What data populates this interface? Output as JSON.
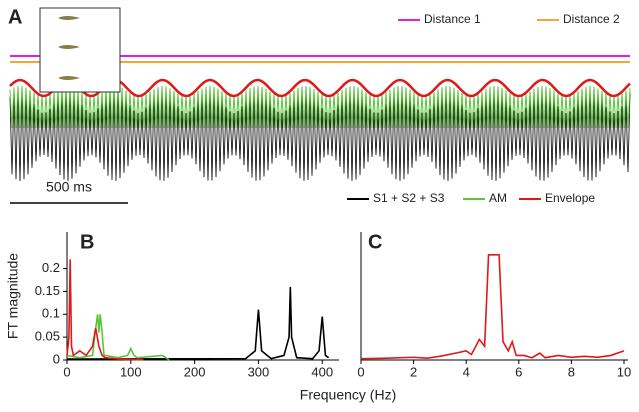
{
  "chart_data": [
    {
      "type": "waveform",
      "panel": "A",
      "scale_label": "500 ms",
      "series": [
        {
          "name": "Distance 1",
          "color": "#e020e0"
        },
        {
          "name": "Distance 2",
          "color": "#f0a830"
        }
      ]
    },
    {
      "type": "line",
      "panel": "B",
      "ylabel": "FT magnitude",
      "xlabel": "Frequency (Hz)",
      "xlim": [
        0,
        420
      ],
      "ylim": [
        0,
        0.28
      ],
      "xticks": [
        0,
        100,
        200,
        300,
        400
      ],
      "yticks": [
        0,
        0.05,
        0.1,
        0.15,
        0.2
      ],
      "series": [
        {
          "name": "S1 + S2 + S3",
          "color": "#000000",
          "x": [
            0,
            280,
            295,
            300,
            305,
            320,
            340,
            348,
            350,
            352,
            360,
            385,
            395,
            400,
            405,
            410
          ],
          "values": [
            0.002,
            0.003,
            0.02,
            0.11,
            0.02,
            0.003,
            0.01,
            0.05,
            0.16,
            0.05,
            0.005,
            0.003,
            0.02,
            0.095,
            0.01,
            0.005
          ]
        },
        {
          "name": "AM",
          "color": "#5cc43c",
          "x": [
            0,
            20,
            40,
            45,
            48,
            50,
            52,
            55,
            58,
            60,
            80,
            95,
            100,
            105,
            110,
            150,
            160
          ],
          "values": [
            0.01,
            0.005,
            0.01,
            0.07,
            0.1,
            0.06,
            0.1,
            0.06,
            0.01,
            0.01,
            0.005,
            0.01,
            0.025,
            0.01,
            0.005,
            0.01,
            0
          ]
        },
        {
          "name": "Envelope",
          "color": "#e01818",
          "x": [
            0,
            3,
            5,
            7,
            10,
            20,
            30,
            40,
            45,
            50,
            55,
            60,
            80,
            100,
            120
          ],
          "values": [
            0.01,
            0.05,
            0.22,
            0.03,
            0.01,
            0.02,
            0.01,
            0.03,
            0.07,
            0.03,
            0.01,
            0.005,
            0.002,
            0.001,
            0.001
          ]
        }
      ]
    },
    {
      "type": "line",
      "panel": "C",
      "xlim": [
        0,
        10
      ],
      "ylim": [
        0,
        0.28
      ],
      "xticks": [
        0,
        2,
        4,
        6,
        8,
        10
      ],
      "series": [
        {
          "color": "#e01818",
          "x": [
            0,
            1,
            2,
            2.5,
            3,
            3.6,
            4,
            4.2,
            4.5,
            4.7,
            4.85,
            4.95,
            5.1,
            5.25,
            5.4,
            5.6,
            5.75,
            5.9,
            6.2,
            6.5,
            6.8,
            7,
            7.5,
            8,
            8.5,
            9,
            9.5,
            10
          ],
          "values": [
            0.003,
            0.004,
            0.006,
            0.004,
            0.008,
            0.015,
            0.02,
            0.012,
            0.045,
            0.03,
            0.23,
            0.23,
            0.23,
            0.23,
            0.04,
            0.02,
            0.04,
            0.01,
            0.01,
            0.005,
            0.015,
            0.005,
            0.01,
            0.006,
            0.008,
            0.006,
            0.01,
            0.02
          ]
        }
      ]
    }
  ]
}
